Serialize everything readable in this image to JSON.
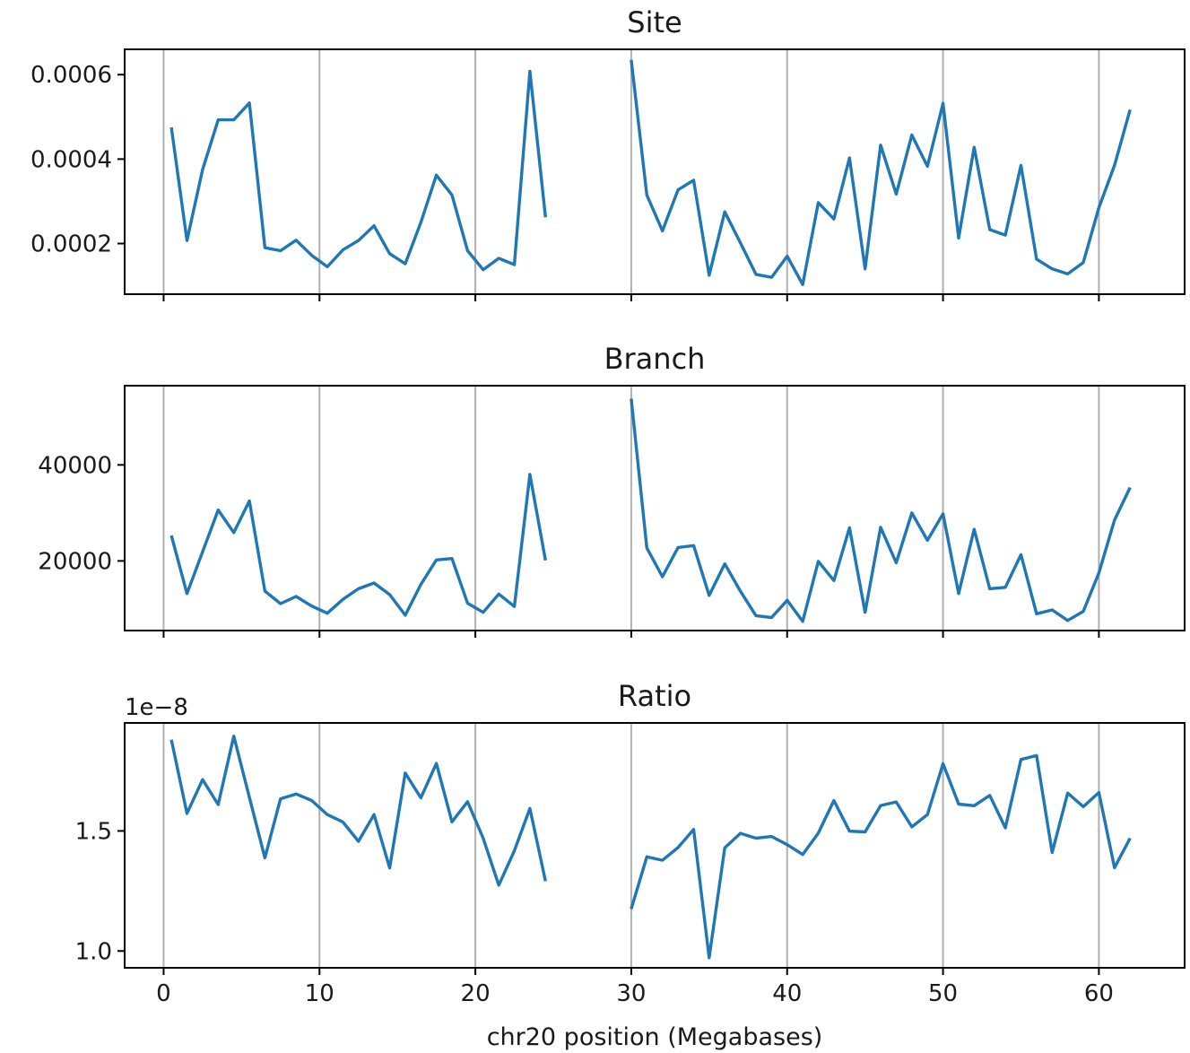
{
  "accent_color": "#1f77b4",
  "xlabel": "chr20 position (Megabases)",
  "x_ticks": [
    0,
    10,
    20,
    30,
    40,
    50,
    60
  ],
  "chart_data": [
    {
      "type": "line",
      "title": "Site",
      "xlim": [
        -2.5,
        65.5
      ],
      "ylim": [
        8e-05,
        0.00066
      ],
      "y_ticks": [
        0.0002,
        0.0004,
        0.0006
      ],
      "y_tick_labels": [
        "0.0002",
        "0.0004",
        "0.0006"
      ],
      "grid": "x-major",
      "segments": [
        {
          "x": [
            0.5,
            1.5,
            2.5,
            3.5,
            4.5,
            5.5,
            6.5,
            7.5,
            8.5,
            9.5,
            10.5,
            11.5,
            12.5,
            13.5,
            14.5,
            15.5,
            16.5,
            17.5,
            18.5,
            19.5,
            20.5,
            21.5,
            22.5,
            23.5,
            24.5
          ],
          "y": [
            0.000475,
            0.000207,
            0.000375,
            0.000493,
            0.000493,
            0.000533,
            0.00019,
            0.000183,
            0.000208,
            0.000172,
            0.000145,
            0.000185,
            0.000207,
            0.000242,
            0.000176,
            0.000152,
            0.00025,
            0.000362,
            0.000315,
            0.000183,
            0.000138,
            0.000165,
            0.00015,
            0.000608,
            0.000262
          ]
        },
        {
          "x": [
            30,
            31,
            32,
            33,
            34,
            35,
            36,
            37,
            38,
            39,
            40,
            41,
            42,
            43,
            44,
            45,
            46,
            47,
            48,
            49,
            50,
            51,
            52,
            53,
            54,
            55,
            56,
            57,
            58,
            59,
            60,
            61,
            62
          ],
          "y": [
            0.000635,
            0.000315,
            0.00023,
            0.000327,
            0.00035,
            0.000125,
            0.000275,
            0.000202,
            0.000127,
            0.00012,
            0.00017,
            0.000103,
            0.000297,
            0.000258,
            0.000403,
            0.00014,
            0.000433,
            0.000317,
            0.000457,
            0.000383,
            0.000532,
            0.000213,
            0.000428,
            0.000233,
            0.00022,
            0.000385,
            0.000163,
            0.00014,
            0.000128,
            0.000155,
            0.000285,
            0.000385,
            0.000517
          ]
        }
      ]
    },
    {
      "type": "line",
      "title": "Branch",
      "xlim": [
        -2.5,
        65.5
      ],
      "ylim": [
        5500,
        56500
      ],
      "y_ticks": [
        20000,
        40000
      ],
      "y_tick_labels": [
        "20000",
        "40000"
      ],
      "grid": "x-major",
      "segments": [
        {
          "x": [
            0.5,
            1.5,
            2.5,
            3.5,
            4.5,
            5.5,
            6.5,
            7.5,
            8.5,
            9.5,
            10.5,
            11.5,
            12.5,
            13.5,
            14.5,
            15.5,
            16.5,
            17.5,
            18.5,
            19.5,
            20.5,
            21.5,
            22.5,
            23.5,
            24.5
          ],
          "y": [
            25300,
            13200,
            21900,
            30600,
            25900,
            32500,
            13700,
            11100,
            12600,
            10600,
            9100,
            12000,
            14200,
            15400,
            13000,
            8700,
            15100,
            20200,
            20500,
            11200,
            9300,
            13100,
            10500,
            38000,
            20100
          ]
        },
        {
          "x": [
            30,
            31,
            32,
            33,
            34,
            35,
            36,
            37,
            38,
            39,
            40,
            41,
            42,
            43,
            44,
            45,
            46,
            47,
            48,
            49,
            50,
            51,
            52,
            53,
            54,
            55,
            56,
            57,
            58,
            59,
            60,
            61,
            62
          ],
          "y": [
            53800,
            22700,
            16700,
            22800,
            23200,
            12800,
            19400,
            13700,
            8600,
            8200,
            11800,
            7400,
            19900,
            15900,
            26900,
            9300,
            27000,
            19600,
            30000,
            24300,
            29800,
            13200,
            26600,
            14200,
            14500,
            21300,
            9000,
            9800,
            7600,
            9500,
            17500,
            28500,
            35300
          ]
        }
      ]
    },
    {
      "type": "line",
      "title": "Ratio",
      "scale_label": "1e−8",
      "xlim": [
        -2.5,
        65.5
      ],
      "ylim": [
        0.93,
        1.95
      ],
      "y_ticks": [
        1.0,
        1.5
      ],
      "y_tick_labels": [
        "1.0",
        "1.5"
      ],
      "grid": "x-major",
      "segments": [
        {
          "x": [
            0.5,
            1.5,
            2.5,
            3.5,
            4.5,
            5.5,
            6.5,
            7.5,
            8.5,
            9.5,
            10.5,
            11.5,
            12.5,
            13.5,
            14.5,
            15.5,
            16.5,
            17.5,
            18.5,
            19.5,
            20.5,
            21.5,
            22.5,
            23.5,
            24.5
          ],
          "y": [
            1.88,
            1.573,
            1.714,
            1.61,
            1.895,
            1.64,
            1.388,
            1.634,
            1.654,
            1.627,
            1.568,
            1.537,
            1.457,
            1.568,
            1.346,
            1.741,
            1.638,
            1.781,
            1.538,
            1.622,
            1.47,
            1.274,
            1.418,
            1.594,
            1.291
          ]
        },
        {
          "x": [
            30,
            31,
            32,
            33,
            34,
            35,
            36,
            37,
            38,
            39,
            40,
            41,
            42,
            43,
            44,
            45,
            46,
            47,
            48,
            49,
            50,
            51,
            52,
            53,
            54,
            55,
            56,
            57,
            58,
            59,
            60,
            61,
            62
          ],
          "y": [
            1.175,
            1.392,
            1.378,
            1.431,
            1.506,
            0.972,
            1.43,
            1.49,
            1.47,
            1.477,
            1.443,
            1.402,
            1.491,
            1.627,
            1.499,
            1.496,
            1.606,
            1.621,
            1.517,
            1.568,
            1.78,
            1.612,
            1.605,
            1.648,
            1.513,
            1.798,
            1.814,
            1.41,
            1.658,
            1.601,
            1.66,
            1.347,
            1.47
          ]
        }
      ]
    }
  ]
}
